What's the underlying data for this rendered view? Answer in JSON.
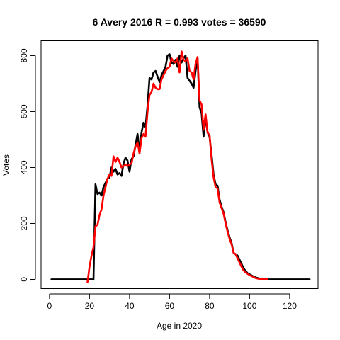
{
  "chart_data": {
    "type": "line",
    "title": "6 Avery 2016 R = 0.993 votes = 36590",
    "xlabel": "Age in 2020",
    "ylabel": "Votes",
    "xlim": [
      -4.2,
      134.2
    ],
    "ylim": [
      -33,
      853
    ],
    "x_ticks": [
      0,
      20,
      40,
      60,
      80,
      100,
      120
    ],
    "y_ticks": [
      0,
      200,
      400,
      600,
      800
    ],
    "grid": false,
    "legend": "none",
    "series": [
      {
        "color": "#000000",
        "points": [
          [
            1,
            0
          ],
          [
            2,
            0
          ],
          [
            3,
            0
          ],
          [
            4,
            0
          ],
          [
            5,
            0
          ],
          [
            6,
            0
          ],
          [
            7,
            0
          ],
          [
            8,
            0
          ],
          [
            9,
            0
          ],
          [
            10,
            0
          ],
          [
            11,
            0
          ],
          [
            12,
            0
          ],
          [
            13,
            0
          ],
          [
            14,
            0
          ],
          [
            15,
            0
          ],
          [
            16,
            0
          ],
          [
            17,
            0
          ],
          [
            18,
            0
          ],
          [
            19,
            0
          ],
          [
            20,
            0
          ],
          [
            21,
            0
          ],
          [
            22,
            0
          ],
          [
            23,
            340
          ],
          [
            24,
            305
          ],
          [
            25,
            310
          ],
          [
            26,
            300
          ],
          [
            27,
            330
          ],
          [
            28,
            345
          ],
          [
            29,
            360
          ],
          [
            30,
            365
          ],
          [
            31,
            400
          ],
          [
            32,
            385
          ],
          [
            33,
            395
          ],
          [
            34,
            375
          ],
          [
            35,
            380
          ],
          [
            36,
            370
          ],
          [
            37,
            415
          ],
          [
            38,
            435
          ],
          [
            39,
            425
          ],
          [
            40,
            385
          ],
          [
            41,
            430
          ],
          [
            42,
            440
          ],
          [
            43,
            480
          ],
          [
            44,
            520
          ],
          [
            45,
            460
          ],
          [
            46,
            525
          ],
          [
            47,
            560
          ],
          [
            48,
            545
          ],
          [
            49,
            620
          ],
          [
            50,
            720
          ],
          [
            51,
            715
          ],
          [
            52,
            740
          ],
          [
            53,
            745
          ],
          [
            54,
            725
          ],
          [
            55,
            705
          ],
          [
            56,
            730
          ],
          [
            57,
            745
          ],
          [
            58,
            760
          ],
          [
            59,
            800
          ],
          [
            60,
            805
          ],
          [
            61,
            775
          ],
          [
            62,
            770
          ],
          [
            63,
            785
          ],
          [
            64,
            760
          ],
          [
            65,
            800
          ],
          [
            66,
            775
          ],
          [
            67,
            790
          ],
          [
            68,
            800
          ],
          [
            69,
            720
          ],
          [
            70,
            710
          ],
          [
            71,
            700
          ],
          [
            72,
            685
          ],
          [
            73,
            745
          ],
          [
            74,
            790
          ],
          [
            75,
            615
          ],
          [
            76,
            595
          ],
          [
            77,
            510
          ],
          [
            78,
            580
          ],
          [
            79,
            525
          ],
          [
            80,
            510
          ],
          [
            81,
            445
          ],
          [
            82,
            375
          ],
          [
            83,
            340
          ],
          [
            84,
            335
          ],
          [
            85,
            285
          ],
          [
            86,
            260
          ],
          [
            87,
            240
          ],
          [
            88,
            205
          ],
          [
            89,
            175
          ],
          [
            90,
            150
          ],
          [
            91,
            130
          ],
          [
            92,
            95
          ],
          [
            93,
            90
          ],
          [
            94,
            85
          ],
          [
            95,
            70
          ],
          [
            96,
            55
          ],
          [
            97,
            40
          ],
          [
            98,
            30
          ],
          [
            99,
            22
          ],
          [
            100,
            18
          ],
          [
            101,
            14
          ],
          [
            102,
            10
          ],
          [
            103,
            7
          ],
          [
            104,
            5
          ],
          [
            105,
            3
          ],
          [
            106,
            2
          ],
          [
            107,
            1
          ],
          [
            108,
            0
          ],
          [
            109,
            0
          ],
          [
            110,
            0
          ],
          [
            111,
            0
          ],
          [
            112,
            0
          ],
          [
            113,
            0
          ],
          [
            114,
            0
          ],
          [
            115,
            0
          ],
          [
            116,
            0
          ],
          [
            117,
            0
          ],
          [
            118,
            0
          ],
          [
            119,
            0
          ],
          [
            120,
            0
          ],
          [
            121,
            0
          ],
          [
            122,
            0
          ],
          [
            123,
            0
          ],
          [
            124,
            0
          ],
          [
            125,
            0
          ],
          [
            126,
            0
          ],
          [
            127,
            0
          ],
          [
            128,
            0
          ],
          [
            129,
            0
          ],
          [
            130,
            0
          ]
        ]
      },
      {
        "color": "#ff0000",
        "points": [
          [
            19,
            -10
          ],
          [
            20,
            45
          ],
          [
            21,
            85
          ],
          [
            22,
            115
          ],
          [
            23,
            190
          ],
          [
            24,
            195
          ],
          [
            25,
            230
          ],
          [
            26,
            250
          ],
          [
            27,
            300
          ],
          [
            28,
            330
          ],
          [
            29,
            360
          ],
          [
            30,
            375
          ],
          [
            31,
            370
          ],
          [
            32,
            440
          ],
          [
            33,
            420
          ],
          [
            34,
            435
          ],
          [
            35,
            420
          ],
          [
            36,
            400
          ],
          [
            37,
            405
          ],
          [
            38,
            410
          ],
          [
            39,
            405
          ],
          [
            40,
            410
          ],
          [
            41,
            415
          ],
          [
            42,
            450
          ],
          [
            43,
            475
          ],
          [
            44,
            490
          ],
          [
            45,
            450
          ],
          [
            46,
            505
          ],
          [
            47,
            520
          ],
          [
            48,
            510
          ],
          [
            49,
            600
          ],
          [
            50,
            660
          ],
          [
            51,
            670
          ],
          [
            52,
            700
          ],
          [
            53,
            685
          ],
          [
            54,
            680
          ],
          [
            55,
            680
          ],
          [
            56,
            715
          ],
          [
            57,
            730
          ],
          [
            58,
            745
          ],
          [
            59,
            755
          ],
          [
            60,
            760
          ],
          [
            61,
            790
          ],
          [
            62,
            780
          ],
          [
            63,
            775
          ],
          [
            64,
            790
          ],
          [
            65,
            740
          ],
          [
            66,
            815
          ],
          [
            67,
            785
          ],
          [
            68,
            780
          ],
          [
            69,
            790
          ],
          [
            70,
            745
          ],
          [
            71,
            740
          ],
          [
            72,
            715
          ],
          [
            73,
            770
          ],
          [
            74,
            795
          ],
          [
            75,
            640
          ],
          [
            76,
            625
          ],
          [
            77,
            535
          ],
          [
            78,
            590
          ],
          [
            79,
            525
          ],
          [
            80,
            515
          ],
          [
            81,
            430
          ],
          [
            82,
            365
          ],
          [
            83,
            330
          ],
          [
            84,
            325
          ],
          [
            85,
            275
          ],
          [
            86,
            255
          ],
          [
            87,
            235
          ],
          [
            88,
            200
          ],
          [
            89,
            170
          ],
          [
            90,
            145
          ],
          [
            91,
            125
          ],
          [
            92,
            95
          ],
          [
            93,
            90
          ],
          [
            94,
            75
          ],
          [
            95,
            60
          ],
          [
            96,
            45
          ],
          [
            97,
            32
          ],
          [
            98,
            25
          ],
          [
            99,
            20
          ],
          [
            100,
            15
          ],
          [
            101,
            12
          ],
          [
            102,
            8
          ],
          [
            103,
            5
          ],
          [
            104,
            3
          ],
          [
            105,
            2
          ],
          [
            106,
            1
          ],
          [
            107,
            0
          ],
          [
            108,
            0
          ],
          [
            109,
            0
          ]
        ]
      }
    ]
  }
}
